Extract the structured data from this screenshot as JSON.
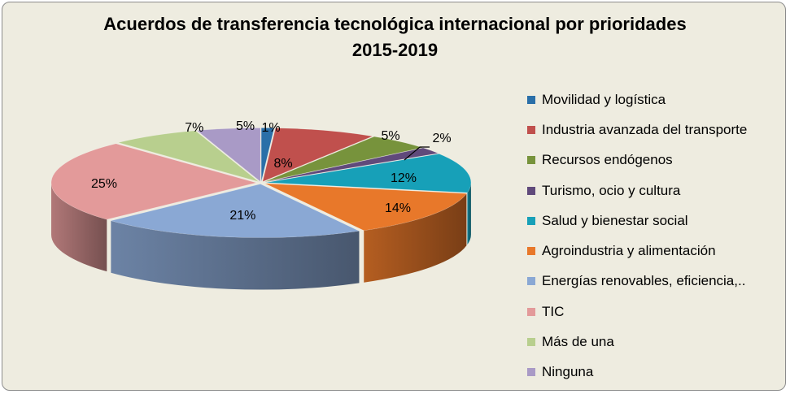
{
  "chart_data": {
    "type": "pie",
    "title": [
      "Acuerdos de transferencia tecnológica internacional por prioridades",
      "2015-2019"
    ],
    "categories": [
      "Movilidad y logística",
      "Industria avanzada del transporte",
      "Recursos endógenos",
      "Turismo, ocio y cultura",
      "Salud y bienestar social",
      "Agroindustria y alimentación",
      "Energías renovables, eficiencia,..",
      "TIC",
      "Más de una",
      "Ninguna"
    ],
    "values": [
      1,
      8,
      5,
      2,
      12,
      14,
      21,
      25,
      7,
      5
    ],
    "data_labels": [
      "1%",
      "8%",
      "5%",
      "2%",
      "12%",
      "14%",
      "21%",
      "25%",
      "7%",
      "5%"
    ],
    "colors": [
      "#2a6fa8",
      "#c0504d",
      "#77933c",
      "#604a7b",
      "#17a0b8",
      "#e8782a",
      "#8aa8d4",
      "#e39a9a",
      "#b8cf8e",
      "#a99ac6"
    ],
    "legend_position": "right",
    "style": "3d-exploded"
  }
}
